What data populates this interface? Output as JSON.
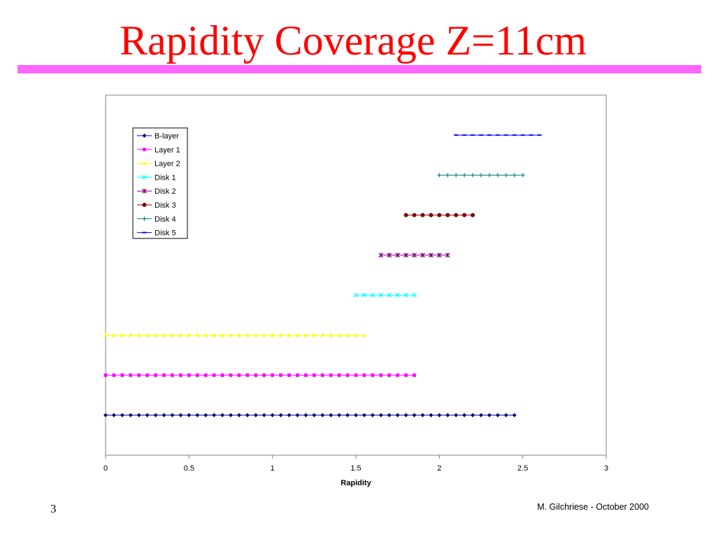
{
  "slide": {
    "title": "Rapidity Coverage Z=11cm",
    "title_color": "#FF0000",
    "rule_color": "#FF66FF",
    "page_number": "3",
    "footer": "M. Gilchriese - October 2000"
  },
  "chart_data": {
    "type": "line",
    "title": "",
    "xlabel": "Rapidity",
    "ylabel": "",
    "xlim": [
      0,
      3
    ],
    "x_ticks": [
      "0",
      "0.5",
      "1",
      "1.5",
      "2",
      "2.5",
      "3"
    ],
    "grid": false,
    "legend_position": "top-left",
    "series": [
      {
        "name": "B-layer",
        "color": "#000080",
        "marker": "diamond",
        "x_range": [
          0,
          2.45
        ],
        "step": 0.05,
        "level": 1
      },
      {
        "name": "Layer 1",
        "color": "#FF00FF",
        "marker": "square",
        "x_range": [
          0,
          1.85
        ],
        "step": 0.05,
        "level": 2
      },
      {
        "name": "Layer 2",
        "color": "#FFFF00",
        "marker": "triangle",
        "x_range": [
          0,
          1.55
        ],
        "step": 0.05,
        "level": 3
      },
      {
        "name": "Disk 1",
        "color": "#00FFFF",
        "marker": "x",
        "x_range": [
          1.5,
          1.85
        ],
        "step": 0.05,
        "level": 4
      },
      {
        "name": "Disk 2",
        "color": "#800080",
        "marker": "star",
        "x_range": [
          1.65,
          2.05
        ],
        "step": 0.05,
        "level": 5
      },
      {
        "name": "Disk 3",
        "color": "#800000",
        "marker": "circle",
        "x_range": [
          1.8,
          2.2
        ],
        "step": 0.05,
        "level": 6
      },
      {
        "name": "Disk 4",
        "color": "#008080",
        "marker": "plus",
        "x_range": [
          2.0,
          2.5
        ],
        "step": 0.05,
        "level": 7
      },
      {
        "name": "Disk 5",
        "color": "#0000FF",
        "marker": "dash",
        "x_range": [
          2.1,
          2.6
        ],
        "step": 0.05,
        "level": 8
      }
    ]
  }
}
